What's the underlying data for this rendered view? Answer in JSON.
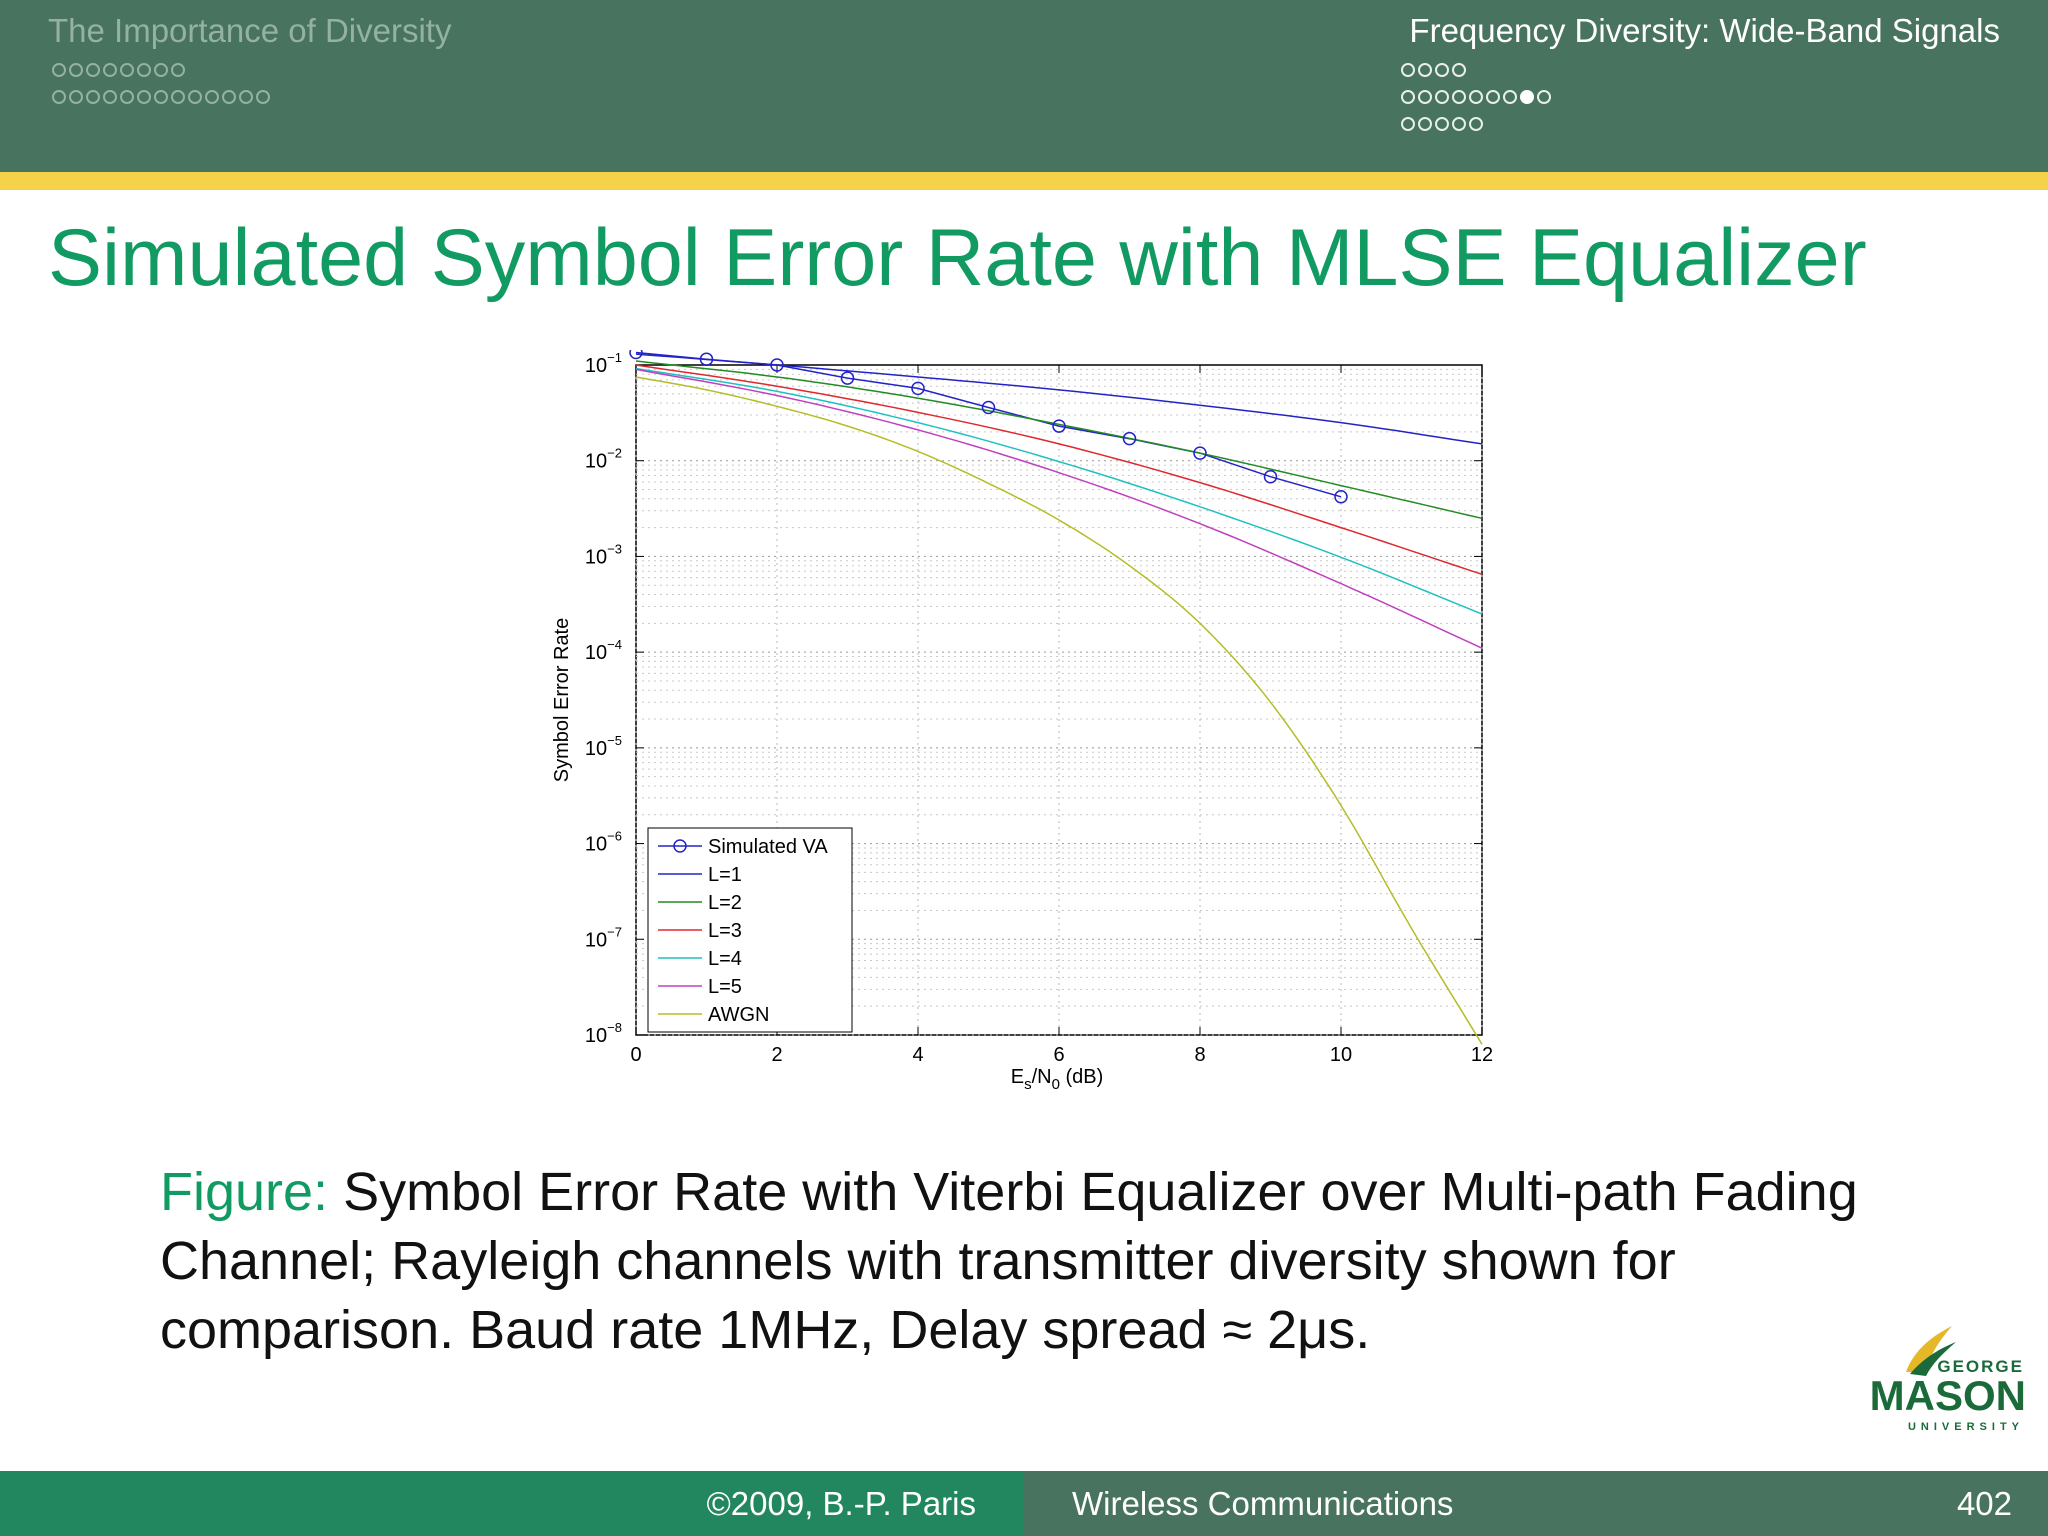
{
  "header": {
    "section_left": "The Importance of Diversity",
    "section_right": "Frequency Diversity: Wide-Band Signals",
    "nav_left_rows": [
      8,
      13
    ],
    "nav_right_rows": [
      {
        "count": 4,
        "filled": []
      },
      {
        "count": 9,
        "filled": [
          7
        ]
      },
      {
        "count": 5,
        "filled": []
      }
    ]
  },
  "slide": {
    "title": "Simulated Symbol Error Rate with MLSE Equalizer",
    "caption_label": "Figure:",
    "caption_text": "Symbol Error Rate with Viterbi Equalizer over Multi-path Fading Channel; Rayleigh channels with transmitter diversity shown for comparison. Baud rate 1MHz, Delay spread ≈ 2μs."
  },
  "chart_data": {
    "type": "line",
    "title": "",
    "xlabel": "Es/N0 (dB)",
    "ylabel": "Symbol Error Rate",
    "xlim": [
      0,
      12
    ],
    "ylim": [
      1e-08,
      0.1
    ],
    "yscale": "log",
    "grid": true,
    "legend_position": "bottom-left",
    "x_ticks": [
      "0",
      "2",
      "4",
      "6",
      "8",
      "10",
      "12"
    ],
    "y_ticks": [
      "10^-1",
      "10^-2",
      "10^-3",
      "10^-4",
      "10^-5",
      "10^-6",
      "10^-7",
      "10^-8"
    ],
    "series": [
      {
        "name": "Simulated VA",
        "color": "#2323c8",
        "marker": "circle",
        "x": [
          0,
          1,
          2,
          3,
          4,
          5,
          6,
          7,
          8,
          9,
          10
        ],
        "y": [
          0.135,
          0.115,
          0.1,
          0.073,
          0.057,
          0.036,
          0.023,
          0.017,
          0.012,
          0.0068,
          0.0042
        ]
      },
      {
        "name": "L=1",
        "color": "#2323c8",
        "x": [
          0,
          2,
          4,
          6,
          8,
          10,
          12
        ],
        "y": [
          0.13,
          0.1,
          0.075,
          0.055,
          0.038,
          0.025,
          0.015
        ]
      },
      {
        "name": "L=2",
        "color": "#228b22",
        "x": [
          0,
          2,
          4,
          6,
          8,
          10,
          12
        ],
        "y": [
          0.11,
          0.075,
          0.045,
          0.024,
          0.012,
          0.0055,
          0.0025
        ]
      },
      {
        "name": "L=3",
        "color": "#e0282d",
        "x": [
          0,
          2,
          4,
          6,
          8,
          10,
          12
        ],
        "y": [
          0.1,
          0.06,
          0.032,
          0.015,
          0.0059,
          0.002,
          0.00065
        ]
      },
      {
        "name": "L=4",
        "color": "#20c0c0",
        "x": [
          0,
          2,
          4,
          6,
          8,
          10,
          12
        ],
        "y": [
          0.092,
          0.053,
          0.025,
          0.0098,
          0.0033,
          0.00098,
          0.00025
        ]
      },
      {
        "name": "L=5",
        "color": "#c040c0",
        "x": [
          0,
          2,
          4,
          6,
          8,
          10,
          12
        ],
        "y": [
          0.09,
          0.048,
          0.021,
          0.0075,
          0.0022,
          0.00052,
          0.00011
        ]
      },
      {
        "name": "AWGN",
        "color": "#b5bd25",
        "x": [
          0,
          1,
          2,
          3,
          4,
          5,
          6,
          7,
          8,
          9,
          10,
          11,
          12
        ],
        "y": [
          0.075,
          0.055,
          0.037,
          0.023,
          0.0125,
          0.0058,
          0.0024,
          0.0008,
          0.0002,
          3e-05,
          2.5e-06,
          1.3e-07,
          8e-09
        ]
      }
    ]
  },
  "logo": {
    "line1": "GEORGE",
    "line2": "MASON",
    "line3": "UNIVERSITY"
  },
  "footer": {
    "copyright": "©2009, B.-P. Paris",
    "course": "Wireless Communications",
    "page": "402"
  }
}
